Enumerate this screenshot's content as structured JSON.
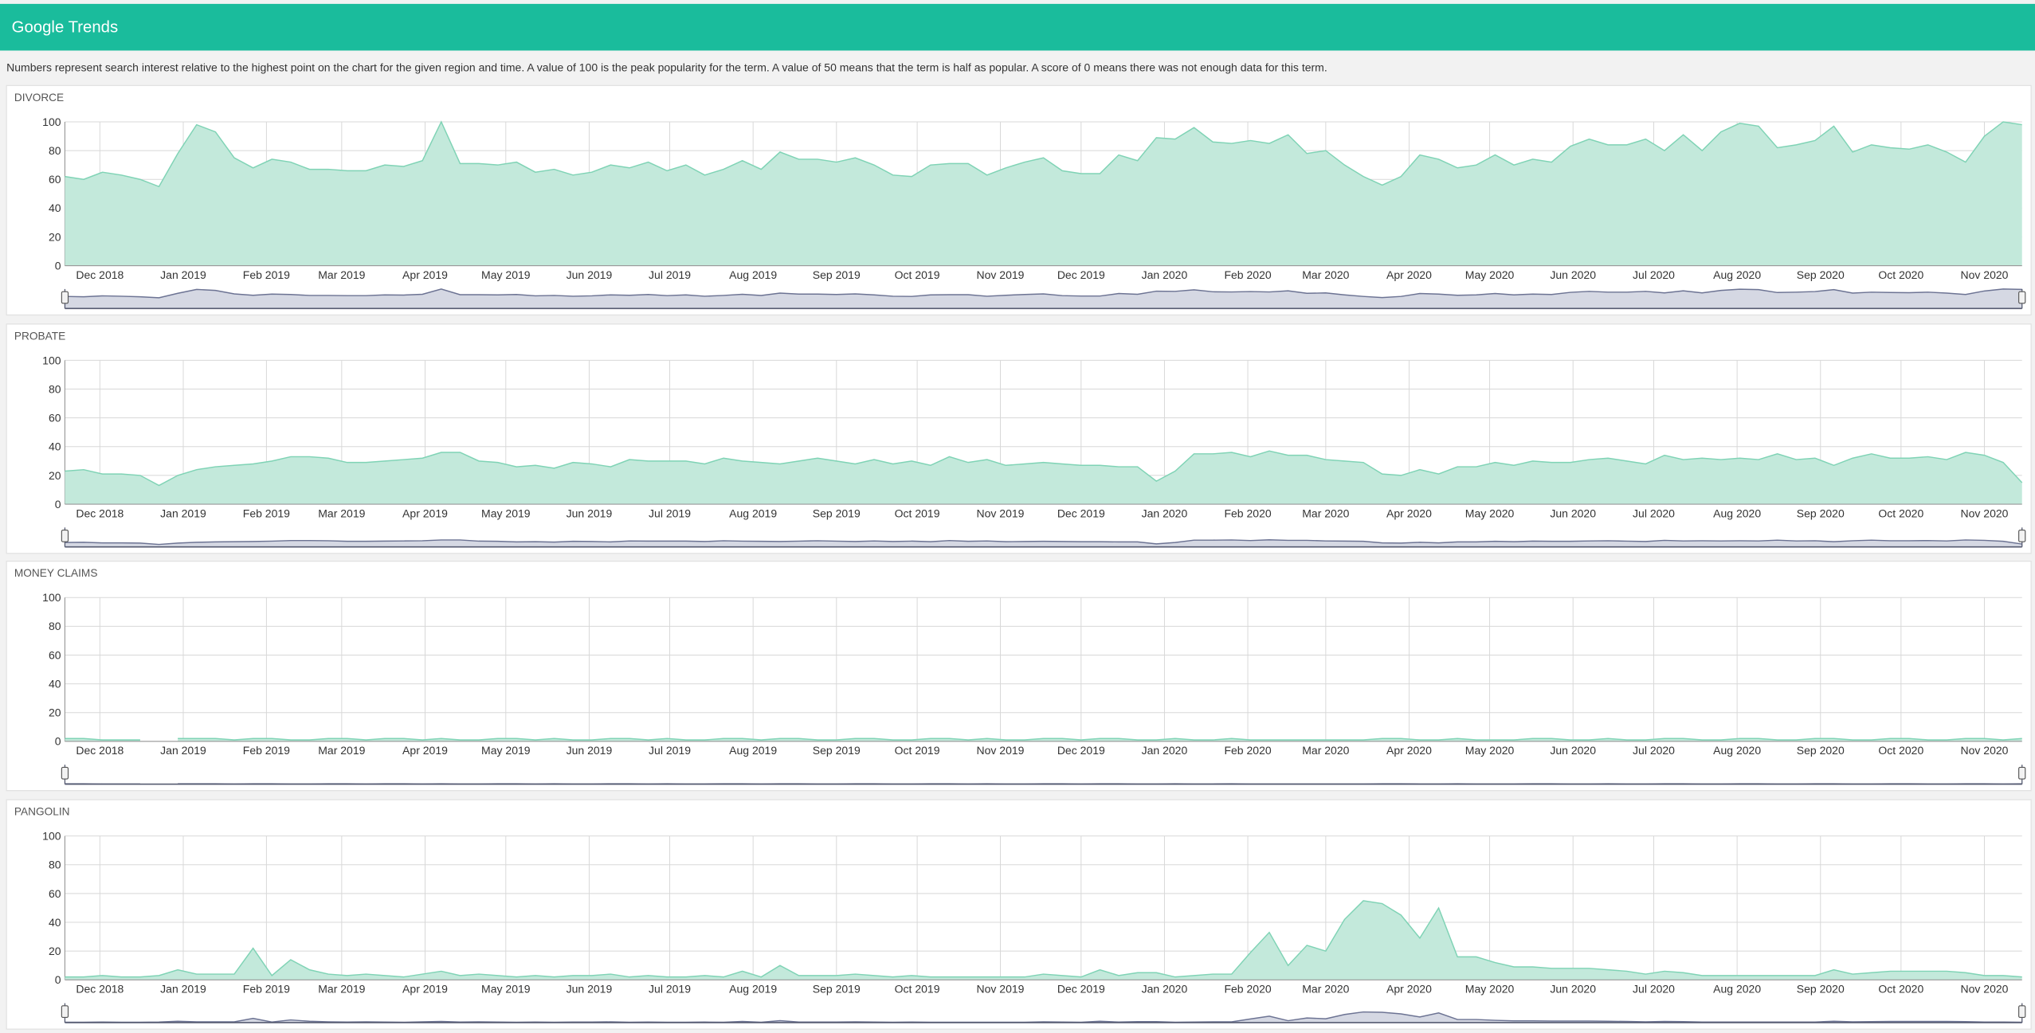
{
  "header": {
    "title": "Google Trends"
  },
  "description": "Numbers represent search interest relative to the highest point on the chart for the given region and time. A value of 100 is the peak popularity for the term. A value of 50 means that the term is half as popular. A score of 0 means there was not enough data for this term.",
  "chart_data": [
    {
      "type": "area",
      "title": "DIVORCE",
      "color": "#c3e9db",
      "line_color": "#7fd3b5",
      "grid": true,
      "xlim": [
        0,
        104
      ],
      "ylim": [
        0,
        100
      ],
      "yticks": [
        0,
        20,
        40,
        60,
        80,
        100
      ],
      "xticks": [
        {
          "value": 1.86,
          "label": "Dec 2018"
        },
        {
          "value": 6.29,
          "label": "Jan 2019"
        },
        {
          "value": 10.71,
          "label": "Feb 2019"
        },
        {
          "value": 14.71,
          "label": "Mar 2019"
        },
        {
          "value": 19.14,
          "label": "Apr 2019"
        },
        {
          "value": 23.43,
          "label": "May 2019"
        },
        {
          "value": 27.86,
          "label": "Jun 2019"
        },
        {
          "value": 32.14,
          "label": "Jul 2019"
        },
        {
          "value": 36.57,
          "label": "Aug 2019"
        },
        {
          "value": 41,
          "label": "Sep 2019"
        },
        {
          "value": 45.29,
          "label": "Oct 2019"
        },
        {
          "value": 49.71,
          "label": "Nov 2019"
        },
        {
          "value": 54,
          "label": "Dec 2019"
        },
        {
          "value": 58.43,
          "label": "Jan 2020"
        },
        {
          "value": 62.86,
          "label": "Feb 2020"
        },
        {
          "value": 67,
          "label": "Mar 2020"
        },
        {
          "value": 71.43,
          "label": "Apr 2020"
        },
        {
          "value": 75.71,
          "label": "May 2020"
        },
        {
          "value": 80.14,
          "label": "Jun 2020"
        },
        {
          "value": 84.43,
          "label": "Jul 2020"
        },
        {
          "value": 88.86,
          "label": "Aug 2020"
        },
        {
          "value": 93.29,
          "label": "Sep 2020"
        },
        {
          "value": 97.57,
          "label": "Oct 2020"
        },
        {
          "value": 102,
          "label": "Nov 2020"
        }
      ],
      "values": [
        62,
        60,
        65,
        63,
        60,
        55,
        78,
        98,
        93,
        75,
        68,
        74,
        72,
        67,
        67,
        66,
        66,
        70,
        69,
        73,
        100,
        71,
        71,
        70,
        72,
        65,
        67,
        63,
        65,
        70,
        68,
        72,
        66,
        70,
        63,
        67,
        73,
        67,
        79,
        74,
        74,
        72,
        75,
        70,
        63,
        62,
        70,
        71,
        71,
        63,
        68,
        72,
        75,
        66,
        64,
        64,
        77,
        73,
        89,
        88,
        96,
        86,
        85,
        87,
        85,
        91,
        78,
        80,
        70,
        62,
        56,
        62,
        77,
        74,
        68,
        70,
        77,
        70,
        74,
        72,
        83,
        88,
        84,
        84,
        88,
        80,
        91,
        80,
        93,
        99,
        97,
        82,
        84,
        87,
        97,
        79,
        84,
        82,
        81,
        84,
        79,
        72,
        90,
        100,
        98
      ]
    },
    {
      "type": "area",
      "title": "PROBATE",
      "color": "#c3e9db",
      "line_color": "#7fd3b5",
      "grid": true,
      "xlim": [
        0,
        104
      ],
      "ylim": [
        0,
        100
      ],
      "yticks": [
        0,
        20,
        40,
        60,
        80,
        100
      ],
      "xticks": [
        {
          "value": 1.86,
          "label": "Dec 2018"
        },
        {
          "value": 6.29,
          "label": "Jan 2019"
        },
        {
          "value": 10.71,
          "label": "Feb 2019"
        },
        {
          "value": 14.71,
          "label": "Mar 2019"
        },
        {
          "value": 19.14,
          "label": "Apr 2019"
        },
        {
          "value": 23.43,
          "label": "May 2019"
        },
        {
          "value": 27.86,
          "label": "Jun 2019"
        },
        {
          "value": 32.14,
          "label": "Jul 2019"
        },
        {
          "value": 36.57,
          "label": "Aug 2019"
        },
        {
          "value": 41,
          "label": "Sep 2019"
        },
        {
          "value": 45.29,
          "label": "Oct 2019"
        },
        {
          "value": 49.71,
          "label": "Nov 2019"
        },
        {
          "value": 54,
          "label": "Dec 2019"
        },
        {
          "value": 58.43,
          "label": "Jan 2020"
        },
        {
          "value": 62.86,
          "label": "Feb 2020"
        },
        {
          "value": 67,
          "label": "Mar 2020"
        },
        {
          "value": 71.43,
          "label": "Apr 2020"
        },
        {
          "value": 75.71,
          "label": "May 2020"
        },
        {
          "value": 80.14,
          "label": "Jun 2020"
        },
        {
          "value": 84.43,
          "label": "Jul 2020"
        },
        {
          "value": 88.86,
          "label": "Aug 2020"
        },
        {
          "value": 93.29,
          "label": "Sep 2020"
        },
        {
          "value": 97.57,
          "label": "Oct 2020"
        },
        {
          "value": 102,
          "label": "Nov 2020"
        }
      ],
      "values": [
        23,
        24,
        21,
        21,
        20,
        13,
        20,
        24,
        26,
        27,
        28,
        30,
        33,
        33,
        32,
        29,
        29,
        30,
        31,
        32,
        36,
        36,
        30,
        29,
        26,
        27,
        25,
        29,
        28,
        26,
        31,
        30,
        30,
        30,
        28,
        32,
        30,
        29,
        28,
        30,
        32,
        30,
        28,
        31,
        28,
        30,
        27,
        33,
        29,
        31,
        27,
        28,
        29,
        28,
        27,
        27,
        26,
        26,
        16,
        23,
        35,
        35,
        36,
        33,
        37,
        34,
        34,
        31,
        30,
        29,
        21,
        20,
        24,
        21,
        26,
        26,
        29,
        27,
        30,
        29,
        29,
        31,
        32,
        30,
        28,
        34,
        31,
        32,
        31,
        32,
        31,
        35,
        31,
        32,
        27,
        32,
        35,
        32,
        32,
        33,
        31,
        36,
        34,
        29,
        15
      ]
    },
    {
      "type": "area",
      "title": "MONEY CLAIMS",
      "color": "#c3e9db",
      "line_color": "#7fd3b5",
      "grid": true,
      "xlim": [
        0,
        104
      ],
      "ylim": [
        0,
        100
      ],
      "yticks": [
        0,
        20,
        40,
        60,
        80,
        100
      ],
      "xticks": [
        {
          "value": 1.86,
          "label": "Dec 2018"
        },
        {
          "value": 6.29,
          "label": "Jan 2019"
        },
        {
          "value": 10.71,
          "label": "Feb 2019"
        },
        {
          "value": 14.71,
          "label": "Mar 2019"
        },
        {
          "value": 19.14,
          "label": "Apr 2019"
        },
        {
          "value": 23.43,
          "label": "May 2019"
        },
        {
          "value": 27.86,
          "label": "Jun 2019"
        },
        {
          "value": 32.14,
          "label": "Jul 2019"
        },
        {
          "value": 36.57,
          "label": "Aug 2019"
        },
        {
          "value": 41,
          "label": "Sep 2019"
        },
        {
          "value": 45.29,
          "label": "Oct 2019"
        },
        {
          "value": 49.71,
          "label": "Nov 2019"
        },
        {
          "value": 54,
          "label": "Dec 2019"
        },
        {
          "value": 58.43,
          "label": "Jan 2020"
        },
        {
          "value": 62.86,
          "label": "Feb 2020"
        },
        {
          "value": 67,
          "label": "Mar 2020"
        },
        {
          "value": 71.43,
          "label": "Apr 2020"
        },
        {
          "value": 75.71,
          "label": "May 2020"
        },
        {
          "value": 80.14,
          "label": "Jun 2020"
        },
        {
          "value": 84.43,
          "label": "Jul 2020"
        },
        {
          "value": 88.86,
          "label": "Aug 2020"
        },
        {
          "value": 93.29,
          "label": "Sep 2020"
        },
        {
          "value": 97.57,
          "label": "Oct 2020"
        },
        {
          "value": 102,
          "label": "Nov 2020"
        }
      ],
      "values": [
        2,
        2,
        1,
        1,
        1,
        null,
        2,
        2,
        2,
        1,
        2,
        2,
        1,
        1,
        2,
        2,
        1,
        2,
        2,
        1,
        2,
        1,
        1,
        2,
        2,
        1,
        2,
        1,
        1,
        2,
        2,
        1,
        2,
        1,
        1,
        2,
        2,
        1,
        2,
        2,
        1,
        1,
        2,
        2,
        1,
        1,
        2,
        2,
        1,
        2,
        1,
        1,
        2,
        2,
        1,
        2,
        2,
        1,
        1,
        2,
        1,
        1,
        2,
        1,
        1,
        1,
        1,
        1,
        1,
        1,
        2,
        2,
        1,
        1,
        2,
        1,
        1,
        1,
        2,
        2,
        1,
        1,
        2,
        1,
        1,
        2,
        2,
        1,
        1,
        2,
        2,
        1,
        1,
        2,
        2,
        1,
        1,
        2,
        2,
        1,
        1,
        2,
        2,
        1,
        2
      ]
    },
    {
      "type": "area",
      "title": "PANGOLIN",
      "color": "#c3e9db",
      "line_color": "#7fd3b5",
      "grid": true,
      "xlim": [
        0,
        104
      ],
      "ylim": [
        0,
        100
      ],
      "yticks": [
        0,
        20,
        40,
        60,
        80,
        100
      ],
      "xticks": [
        {
          "value": 1.86,
          "label": "Dec 2018"
        },
        {
          "value": 6.29,
          "label": "Jan 2019"
        },
        {
          "value": 10.71,
          "label": "Feb 2019"
        },
        {
          "value": 14.71,
          "label": "Mar 2019"
        },
        {
          "value": 19.14,
          "label": "Apr 2019"
        },
        {
          "value": 23.43,
          "label": "May 2019"
        },
        {
          "value": 27.86,
          "label": "Jun 2019"
        },
        {
          "value": 32.14,
          "label": "Jul 2019"
        },
        {
          "value": 36.57,
          "label": "Aug 2019"
        },
        {
          "value": 41,
          "label": "Sep 2019"
        },
        {
          "value": 45.29,
          "label": "Oct 2019"
        },
        {
          "value": 49.71,
          "label": "Nov 2019"
        },
        {
          "value": 54,
          "label": "Dec 2019"
        },
        {
          "value": 58.43,
          "label": "Jan 2020"
        },
        {
          "value": 62.86,
          "label": "Feb 2020"
        },
        {
          "value": 67,
          "label": "Mar 2020"
        },
        {
          "value": 71.43,
          "label": "Apr 2020"
        },
        {
          "value": 75.71,
          "label": "May 2020"
        },
        {
          "value": 80.14,
          "label": "Jun 2020"
        },
        {
          "value": 84.43,
          "label": "Jul 2020"
        },
        {
          "value": 88.86,
          "label": "Aug 2020"
        },
        {
          "value": 93.29,
          "label": "Sep 2020"
        },
        {
          "value": 97.57,
          "label": "Oct 2020"
        },
        {
          "value": 102,
          "label": "Nov 2020"
        }
      ],
      "values": [
        2,
        2,
        3,
        2,
        2,
        3,
        7,
        4,
        4,
        4,
        22,
        3,
        14,
        7,
        4,
        3,
        4,
        3,
        2,
        4,
        6,
        3,
        4,
        3,
        2,
        3,
        2,
        3,
        3,
        4,
        2,
        3,
        2,
        2,
        3,
        2,
        6,
        2,
        10,
        3,
        3,
        3,
        4,
        3,
        2,
        3,
        2,
        2,
        2,
        2,
        2,
        2,
        4,
        3,
        2,
        7,
        3,
        5,
        5,
        2,
        3,
        4,
        4,
        19,
        33,
        10,
        24,
        20,
        42,
        55,
        53,
        45,
        29,
        50,
        16,
        16,
        12,
        9,
        9,
        8,
        8,
        8,
        7,
        6,
        4,
        6,
        5,
        3,
        3,
        3,
        3,
        3,
        3,
        3,
        7,
        4,
        5,
        6,
        6,
        6,
        6,
        5,
        3,
        3,
        2
      ]
    }
  ]
}
